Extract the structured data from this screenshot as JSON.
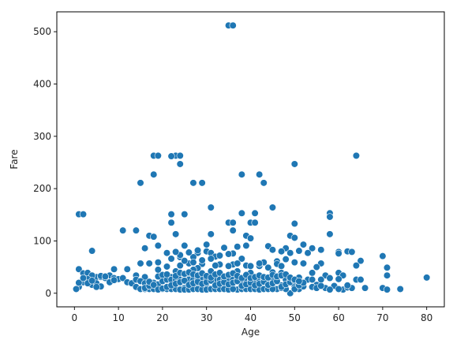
{
  "chart_data": {
    "type": "scatter",
    "title": "",
    "xlabel": "Age",
    "ylabel": "Fare",
    "xlim": [
      -4,
      84
    ],
    "ylim": [
      -26,
      538
    ],
    "xticks": [
      0,
      10,
      20,
      30,
      40,
      50,
      60,
      70,
      80
    ],
    "yticks": [
      0,
      100,
      200,
      300,
      400,
      500
    ],
    "grid": false,
    "legend": "none",
    "point_color": "#1f77b4",
    "points": [
      [
        35,
        512
      ],
      [
        36,
        512
      ],
      [
        18,
        263
      ],
      [
        19,
        263
      ],
      [
        23,
        263
      ],
      [
        24,
        263
      ],
      [
        64,
        263
      ],
      [
        22,
        262
      ],
      [
        24,
        247
      ],
      [
        50,
        247
      ],
      [
        18,
        227
      ],
      [
        38,
        227
      ],
      [
        42,
        227
      ],
      [
        43,
        211
      ],
      [
        15,
        211
      ],
      [
        27,
        211
      ],
      [
        29,
        211
      ],
      [
        31,
        164
      ],
      [
        45,
        164
      ],
      [
        38,
        153
      ],
      [
        41,
        153
      ],
      [
        58,
        153
      ],
      [
        58,
        146
      ],
      [
        1,
        151
      ],
      [
        2,
        151
      ],
      [
        22,
        151
      ],
      [
        25,
        151
      ],
      [
        22,
        135
      ],
      [
        35,
        135
      ],
      [
        36,
        135
      ],
      [
        40,
        135
      ],
      [
        41,
        135
      ],
      [
        50,
        133
      ],
      [
        11,
        120
      ],
      [
        14,
        120
      ],
      [
        36,
        120
      ],
      [
        23,
        113
      ],
      [
        31,
        113
      ],
      [
        58,
        113
      ],
      [
        39,
        110
      ],
      [
        49,
        110
      ],
      [
        17,
        110
      ],
      [
        18,
        108
      ],
      [
        50,
        106
      ],
      [
        40,
        105
      ],
      [
        19,
        91
      ],
      [
        25,
        91
      ],
      [
        30,
        93
      ],
      [
        39,
        91
      ],
      [
        44,
        90
      ],
      [
        52,
        93
      ],
      [
        37,
        89
      ],
      [
        34,
        87
      ],
      [
        48,
        86
      ],
      [
        54,
        86
      ],
      [
        51,
        81
      ],
      [
        4,
        81
      ],
      [
        16,
        86
      ],
      [
        21,
        77
      ],
      [
        28,
        77
      ],
      [
        30,
        80
      ],
      [
        31,
        77
      ],
      [
        45,
        83
      ],
      [
        47,
        80
      ],
      [
        49,
        77
      ],
      [
        53,
        77
      ],
      [
        56,
        83
      ],
      [
        60,
        79
      ],
      [
        60,
        76
      ],
      [
        62,
        80
      ],
      [
        63,
        79
      ],
      [
        70,
        71
      ],
      [
        22,
        66
      ],
      [
        24,
        69
      ],
      [
        27,
        69
      ],
      [
        32,
        70
      ],
      [
        36,
        76
      ],
      [
        38,
        66
      ],
      [
        46,
        61
      ],
      [
        48,
        65
      ],
      [
        19,
        59
      ],
      [
        17,
        57
      ],
      [
        15,
        57
      ],
      [
        26,
        57
      ],
      [
        29,
        56
      ],
      [
        33,
        55
      ],
      [
        36,
        55
      ],
      [
        43,
        59
      ],
      [
        50,
        59
      ],
      [
        52,
        57
      ],
      [
        56,
        57
      ],
      [
        65,
        62
      ],
      [
        71,
        49
      ],
      [
        64,
        53
      ],
      [
        55,
        50
      ],
      [
        44,
        49
      ],
      [
        42,
        52
      ],
      [
        35,
        52
      ],
      [
        32,
        53
      ],
      [
        24,
        53
      ],
      [
        21,
        51
      ],
      [
        28,
        48
      ],
      [
        12,
        46
      ],
      [
        9,
        46
      ],
      [
        1,
        46
      ],
      [
        19,
        45
      ],
      [
        23,
        42
      ],
      [
        27,
        45
      ],
      [
        31,
        42
      ],
      [
        37,
        42
      ],
      [
        40,
        39
      ],
      [
        45,
        40
      ],
      [
        47,
        39
      ],
      [
        54,
        39
      ],
      [
        60,
        39
      ],
      [
        61,
        34
      ],
      [
        71,
        34
      ],
      [
        57,
        34
      ],
      [
        51,
        30
      ],
      [
        48,
        31
      ],
      [
        42,
        30
      ],
      [
        36,
        31
      ],
      [
        33,
        30
      ],
      [
        26,
        31
      ],
      [
        22,
        31
      ],
      [
        16,
        31
      ],
      [
        14,
        34
      ],
      [
        5,
        31
      ],
      [
        2,
        38
      ],
      [
        3,
        39
      ],
      [
        4,
        34
      ],
      [
        6,
        31
      ],
      [
        8,
        34
      ],
      [
        9,
        29
      ],
      [
        10,
        27
      ],
      [
        11,
        29
      ],
      [
        12,
        21
      ],
      [
        13,
        19
      ],
      [
        14,
        26
      ],
      [
        15,
        23
      ],
      [
        16,
        19
      ],
      [
        17,
        15
      ],
      [
        18,
        11
      ],
      [
        19,
        13
      ],
      [
        20,
        8
      ],
      [
        21,
        10
      ],
      [
        22,
        14
      ],
      [
        23,
        11
      ],
      [
        24,
        8
      ],
      [
        25,
        10
      ],
      [
        26,
        8
      ],
      [
        27,
        13
      ],
      [
        28,
        10
      ],
      [
        29,
        8
      ],
      [
        30,
        13
      ],
      [
        31,
        9
      ],
      [
        32,
        8
      ],
      [
        33,
        10
      ],
      [
        34,
        13
      ],
      [
        35,
        8
      ],
      [
        36,
        10
      ],
      [
        37,
        7
      ],
      [
        38,
        9
      ],
      [
        39,
        8
      ],
      [
        40,
        10
      ],
      [
        41,
        8
      ],
      [
        42,
        13
      ],
      [
        43,
        9
      ],
      [
        44,
        8
      ],
      [
        45,
        13
      ],
      [
        46,
        8
      ],
      [
        47,
        10
      ],
      [
        48,
        26
      ],
      [
        49,
        0
      ],
      [
        50,
        13
      ],
      [
        51,
        8
      ],
      [
        52,
        13
      ],
      [
        53,
        26
      ],
      [
        54,
        26
      ],
      [
        55,
        16
      ],
      [
        56,
        26
      ],
      [
        57,
        10
      ],
      [
        58,
        29
      ],
      [
        59,
        14
      ],
      [
        60,
        27
      ],
      [
        61,
        7
      ],
      [
        62,
        11
      ],
      [
        63,
        10
      ],
      [
        64,
        26
      ],
      [
        65,
        26
      ],
      [
        66,
        10
      ],
      [
        70,
        10
      ],
      [
        71,
        7
      ],
      [
        74,
        8
      ],
      [
        80,
        30
      ],
      [
        1,
        12
      ],
      [
        2,
        21
      ],
      [
        3,
        27
      ],
      [
        4,
        16
      ],
      [
        5,
        19
      ],
      [
        6,
        13
      ],
      [
        7,
        29
      ],
      [
        8,
        21
      ],
      [
        0.4,
        8
      ],
      [
        1,
        20
      ],
      [
        2,
        29
      ],
      [
        3,
        19
      ],
      [
        4,
        24
      ],
      [
        5,
        12
      ],
      [
        6,
        33
      ],
      [
        7,
        32
      ],
      [
        9,
        25
      ],
      [
        14,
        12
      ],
      [
        15,
        8
      ],
      [
        16,
        8
      ],
      [
        17,
        8
      ],
      [
        18,
        8
      ],
      [
        19,
        8
      ],
      [
        20,
        8
      ],
      [
        21,
        8
      ],
      [
        22,
        8
      ],
      [
        23,
        8
      ],
      [
        24,
        7
      ],
      [
        25,
        7
      ],
      [
        26,
        7
      ],
      [
        27,
        8
      ],
      [
        28,
        8
      ],
      [
        29,
        7
      ],
      [
        30,
        7
      ],
      [
        31,
        8
      ],
      [
        32,
        8
      ],
      [
        33,
        8
      ],
      [
        34,
        8
      ],
      [
        35,
        7
      ],
      [
        36,
        8
      ],
      [
        38,
        8
      ],
      [
        39,
        8
      ],
      [
        40,
        8
      ],
      [
        41,
        8
      ],
      [
        42,
        7
      ],
      [
        43,
        8
      ],
      [
        44,
        8
      ],
      [
        45,
        8
      ],
      [
        46,
        26
      ],
      [
        47,
        15
      ],
      [
        48,
        8
      ],
      [
        49,
        26
      ],
      [
        50,
        8
      ],
      [
        16,
        10
      ],
      [
        17,
        14
      ],
      [
        18,
        20
      ],
      [
        19,
        17
      ],
      [
        20,
        23
      ],
      [
        21,
        26
      ],
      [
        22,
        26
      ],
      [
        23,
        26
      ],
      [
        24,
        26
      ],
      [
        25,
        26
      ],
      [
        26,
        26
      ],
      [
        27,
        26
      ],
      [
        28,
        26
      ],
      [
        29,
        26
      ],
      [
        30,
        26
      ],
      [
        31,
        26
      ],
      [
        32,
        26
      ],
      [
        33,
        26
      ],
      [
        34,
        26
      ],
      [
        35,
        26
      ],
      [
        36,
        26
      ],
      [
        37,
        26
      ],
      [
        38,
        26
      ],
      [
        39,
        26
      ],
      [
        40,
        26
      ],
      [
        41,
        26
      ],
      [
        42,
        26
      ],
      [
        43,
        26
      ],
      [
        44,
        26
      ],
      [
        45,
        26
      ],
      [
        17,
        22
      ],
      [
        18,
        16
      ],
      [
        19,
        7
      ],
      [
        20,
        9
      ],
      [
        21,
        12
      ],
      [
        22,
        15
      ],
      [
        23,
        18
      ],
      [
        24,
        21
      ],
      [
        25,
        24
      ],
      [
        26,
        16
      ],
      [
        27,
        19
      ],
      [
        28,
        22
      ],
      [
        29,
        18
      ],
      [
        30,
        21
      ],
      [
        31,
        24
      ],
      [
        32,
        15
      ],
      [
        33,
        18
      ],
      [
        34,
        21
      ],
      [
        35,
        17
      ],
      [
        36,
        20
      ],
      [
        37,
        23
      ],
      [
        38,
        14
      ],
      [
        39,
        17
      ],
      [
        40,
        20
      ],
      [
        41,
        15
      ],
      [
        42,
        18
      ],
      [
        43,
        22
      ],
      [
        44,
        16
      ],
      [
        45,
        19
      ],
      [
        46,
        23
      ],
      [
        47,
        12
      ],
      [
        48,
        17
      ],
      [
        49,
        21
      ],
      [
        50,
        24
      ],
      [
        51,
        15
      ],
      [
        52,
        20
      ],
      [
        54,
        12
      ],
      [
        55,
        10
      ],
      [
        56,
        14
      ],
      [
        58,
        7
      ],
      [
        60,
        8
      ],
      [
        62,
        15
      ],
      [
        19,
        32
      ],
      [
        20,
        35
      ],
      [
        21,
        36
      ],
      [
        23,
        33
      ],
      [
        24,
        39
      ],
      [
        25,
        37
      ],
      [
        26,
        40
      ],
      [
        27,
        36
      ],
      [
        28,
        34
      ],
      [
        29,
        38
      ],
      [
        30,
        33
      ],
      [
        31,
        30
      ],
      [
        32,
        36
      ],
      [
        33,
        39
      ],
      [
        34,
        32
      ],
      [
        35,
        35
      ],
      [
        36,
        38
      ],
      [
        37,
        33
      ],
      [
        38,
        29
      ],
      [
        39,
        35
      ],
      [
        40,
        29
      ],
      [
        41,
        31
      ],
      [
        42,
        34
      ],
      [
        43,
        31
      ],
      [
        44,
        30
      ],
      [
        45,
        35
      ],
      [
        46,
        32
      ],
      [
        47,
        34
      ],
      [
        48,
        36
      ],
      [
        49,
        30
      ],
      [
        50,
        26
      ],
      [
        51,
        23
      ],
      [
        24,
        73
      ],
      [
        26,
        78
      ],
      [
        28,
        82
      ],
      [
        23,
        79
      ],
      [
        25,
        62
      ],
      [
        27,
        59
      ],
      [
        29,
        63
      ],
      [
        31,
        66
      ],
      [
        33,
        72
      ],
      [
        35,
        75
      ],
      [
        37,
        57
      ],
      [
        39,
        53
      ],
      [
        40,
        52
      ],
      [
        42,
        57
      ],
      [
        46,
        56
      ],
      [
        47,
        52
      ]
    ]
  }
}
